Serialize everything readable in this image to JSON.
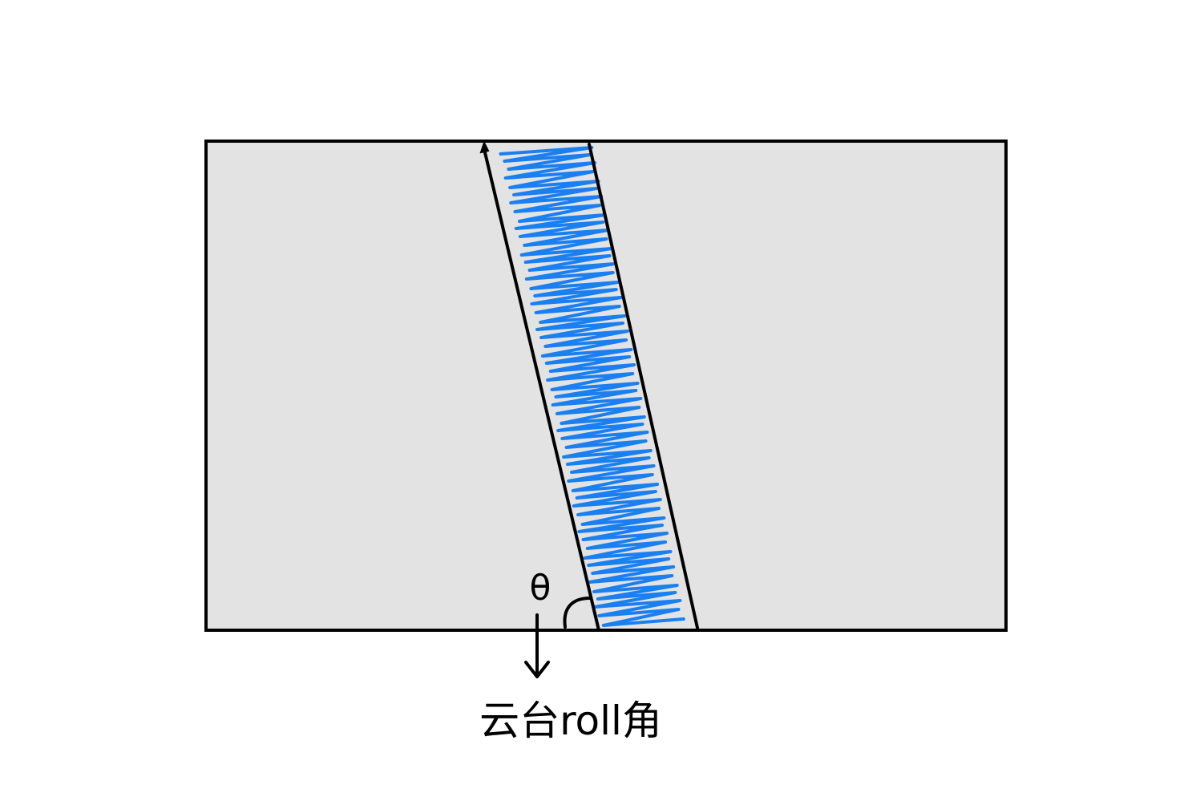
{
  "diagram": {
    "angle_symbol": "θ",
    "caption": "云台roll角",
    "colors": {
      "background": "#ffffff",
      "frame_fill": "#e3e3e3",
      "frame_stroke": "#000000",
      "scribble": "#1a7ff0",
      "lines": "#000000"
    }
  }
}
